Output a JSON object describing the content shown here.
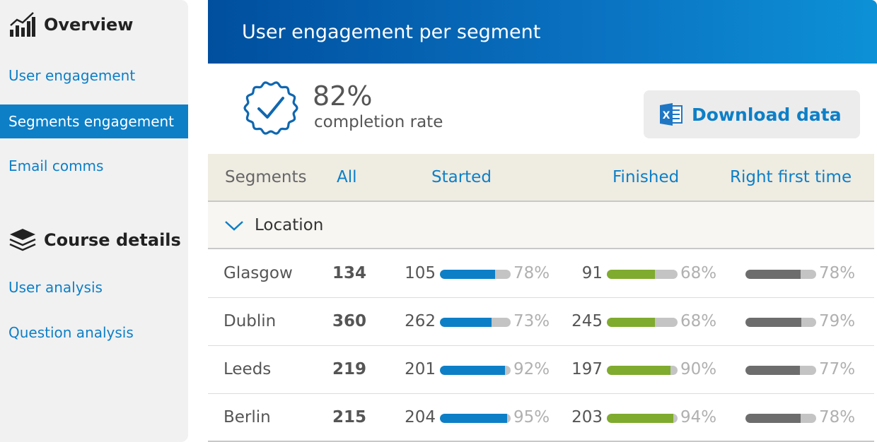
{
  "colors": {
    "accent": "#0d7fc7",
    "started_bar": "#0d7fc7",
    "finished_bar": "#7fab2e",
    "rft_bar": "#6d6d6d",
    "bar_track": "#c4c4c4"
  },
  "sidebar": {
    "overview": {
      "title": "Overview",
      "icon": "bar-chart-icon"
    },
    "course": {
      "title": "Course details",
      "icon": "layers-icon"
    },
    "items": [
      {
        "label": "User engagement",
        "active": false
      },
      {
        "label": "Segments engagement",
        "active": true
      },
      {
        "label": "Email comms",
        "active": false
      },
      {
        "label": "User analysis",
        "active": false
      },
      {
        "label": "Question analysis",
        "active": false
      }
    ]
  },
  "main": {
    "title": "User engagement per segment",
    "completion": {
      "value": "82%",
      "label": "completion rate",
      "icon": "badge-check-icon"
    },
    "download": {
      "label": "Download data",
      "icon": "excel-icon"
    },
    "columns": {
      "segments": "Segments",
      "all": "All",
      "started": "Started",
      "finished": "Finished",
      "rft": "Right first time"
    },
    "group": {
      "label": "Location",
      "icon": "chevron-down-icon"
    },
    "rows": [
      {
        "city": "Glasgow",
        "all": "134",
        "started": "105",
        "started_pct": "78%",
        "started_frac": 0.78,
        "finished": "91",
        "finished_pct": "68%",
        "finished_frac": 0.68,
        "rft_pct": "78%",
        "rft_frac": 0.78
      },
      {
        "city": "Dublin",
        "all": "360",
        "started": "262",
        "started_pct": "73%",
        "started_frac": 0.73,
        "finished": "245",
        "finished_pct": "68%",
        "finished_frac": 0.68,
        "rft_pct": "79%",
        "rft_frac": 0.79
      },
      {
        "city": "Leeds",
        "all": "219",
        "started": "201",
        "started_pct": "92%",
        "started_frac": 0.92,
        "finished": "197",
        "finished_pct": "90%",
        "finished_frac": 0.9,
        "rft_pct": "77%",
        "rft_frac": 0.77
      },
      {
        "city": "Berlin",
        "all": "215",
        "started": "204",
        "started_pct": "95%",
        "started_frac": 0.95,
        "finished": "203",
        "finished_pct": "94%",
        "finished_frac": 0.94,
        "rft_pct": "78%",
        "rft_frac": 0.78
      }
    ]
  }
}
